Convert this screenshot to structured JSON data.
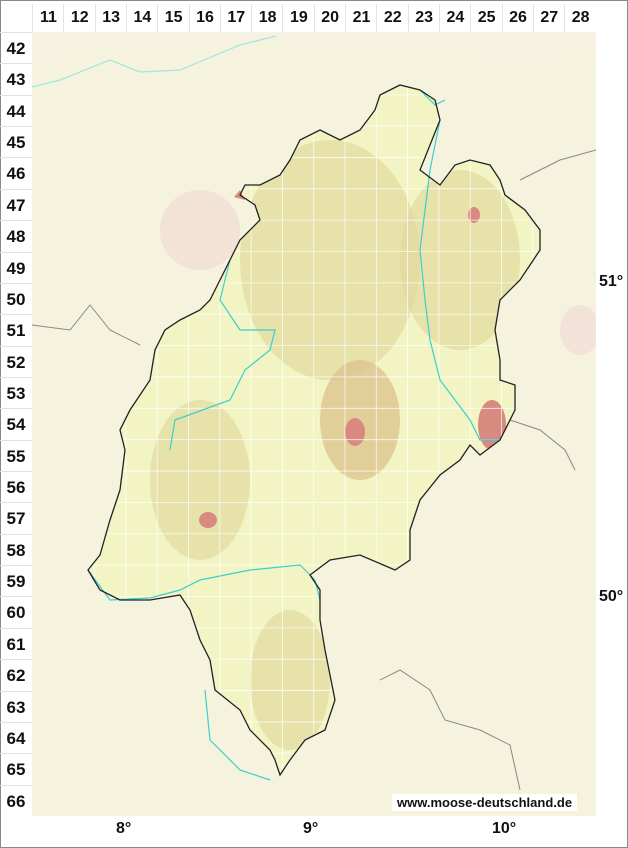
{
  "grid": {
    "columns": [
      "11",
      "12",
      "13",
      "14",
      "15",
      "16",
      "17",
      "18",
      "19",
      "20",
      "21",
      "22",
      "23",
      "24",
      "25",
      "26",
      "27",
      "28"
    ],
    "rows": [
      "42",
      "43",
      "44",
      "45",
      "46",
      "47",
      "48",
      "49",
      "50",
      "51",
      "52",
      "53",
      "54",
      "55",
      "56",
      "57",
      "58",
      "59",
      "60",
      "61",
      "62",
      "63",
      "64",
      "65",
      "66"
    ]
  },
  "longitude_labels": [
    "8°",
    "9°",
    "10°"
  ],
  "latitude_labels": [
    "51°",
    "50°"
  ],
  "watermark": "www.moose-deutschland.de",
  "colors": {
    "region_fill": "#f2f4c4",
    "surround_fill": "#f6f0e0",
    "border": "#222222",
    "river": "#3ccfcf",
    "highland": "#d9b88a",
    "peak": "#d98a80",
    "state_border": "#888888"
  }
}
